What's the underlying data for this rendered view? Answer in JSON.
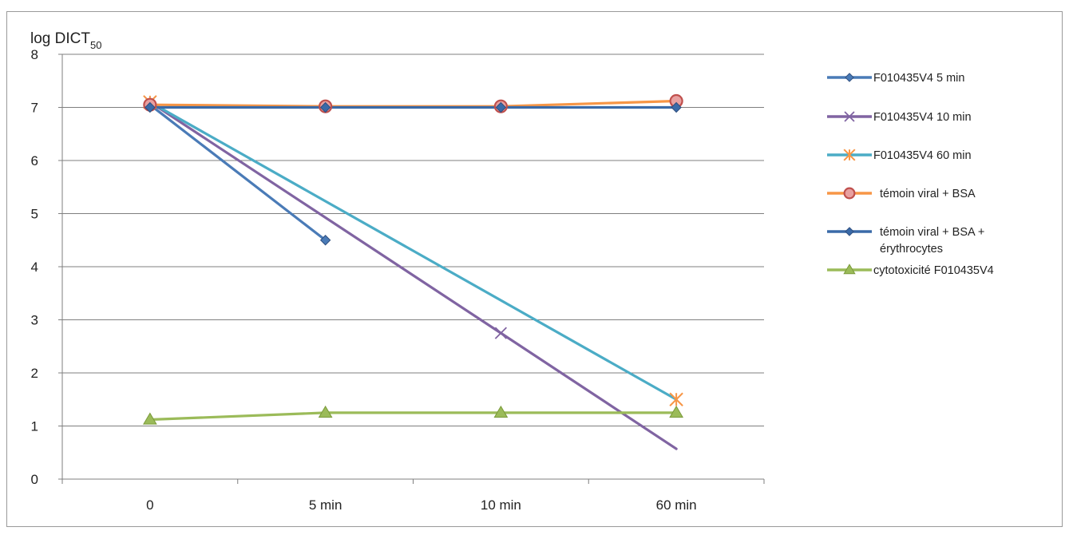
{
  "chart_data": {
    "type": "line",
    "ylabel_main": "log DICT",
    "ylabel_sub": "50",
    "categories": [
      "0",
      "5 min",
      "10 min",
      "60 min"
    ],
    "ylim": [
      0,
      8
    ],
    "yticks": [
      0,
      1,
      2,
      3,
      4,
      5,
      6,
      7,
      8
    ],
    "grid": true,
    "legend_position": "right",
    "series": [
      {
        "name": "F010435V4 5 min",
        "values": [
          7.05,
          4.5,
          null,
          null
        ],
        "color": "#4a7bb7",
        "marker": "diamond"
      },
      {
        "name": "F010435V4 10 min",
        "values": [
          7.1,
          null,
          2.75,
          0.57
        ],
        "color": "#8064a2",
        "marker": "x"
      },
      {
        "name": "F010435V4 60 min",
        "values": [
          7.1,
          null,
          null,
          1.5
        ],
        "color": "#4bacc6",
        "marker": "star"
      },
      {
        "name": "témoin viral + BSA",
        "values": [
          7.05,
          7.02,
          7.02,
          7.12
        ],
        "color": "#f79646",
        "marker": "circle"
      },
      {
        "name_lines": [
          "témoin viral + BSA +",
          "érythrocytes"
        ],
        "values": [
          7.0,
          7.0,
          7.0,
          7.0
        ],
        "color": "#3a6aa8",
        "marker": "diamond"
      },
      {
        "name": "cytotoxicité F010435V4",
        "values": [
          1.12,
          1.25,
          1.25,
          1.25
        ],
        "color": "#9bbb59",
        "marker": "triangle"
      }
    ]
  }
}
